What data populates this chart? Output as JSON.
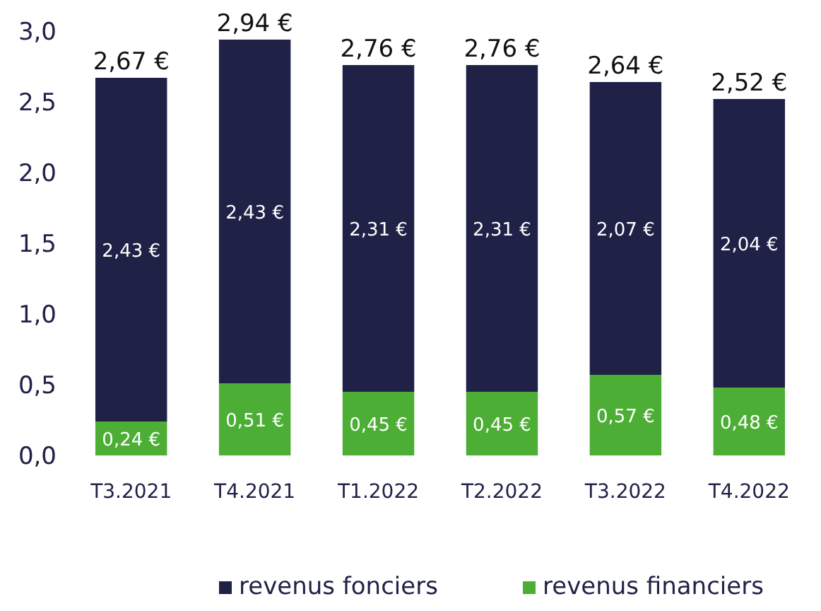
{
  "chart_data": {
    "type": "bar",
    "stacked": true,
    "categories": [
      "T3.2021",
      "T4.2021",
      "T1.2022",
      "T2.2022",
      "T3.2022",
      "T4.2022"
    ],
    "series": [
      {
        "name": "revenus financiers",
        "color": "#4cae35",
        "values": [
          0.24,
          0.51,
          0.45,
          0.45,
          0.57,
          0.48
        ],
        "value_labels": [
          "0,24 €",
          "0,51 €",
          "0,45 €",
          "0,45 €",
          "0,57 €",
          "0,48 €"
        ]
      },
      {
        "name": "revenus fonciers",
        "color": "#1f2147",
        "values": [
          2.43,
          2.43,
          2.31,
          2.31,
          2.07,
          2.04
        ],
        "value_labels": [
          "2,43 €",
          "2,43 €",
          "2,31 €",
          "2,31 €",
          "2,07 €",
          "2,04 €"
        ]
      }
    ],
    "totals": [
      "2,67 €",
      "2,94 €",
      "2,76 €",
      "2,76 €",
      "2,64 €",
      "2,52 €"
    ],
    "ylim": [
      0,
      3
    ],
    "yticks": [
      {
        "value": 0,
        "label": "0,0"
      },
      {
        "value": 0.5,
        "label": "0,5"
      },
      {
        "value": 1,
        "label": "1,0"
      },
      {
        "value": 1.5,
        "label": "1,5"
      },
      {
        "value": 2,
        "label": "2,0"
      },
      {
        "value": 2.5,
        "label": "2,5"
      },
      {
        "value": 3,
        "label": "3,0"
      }
    ],
    "grid": false,
    "legend": "bottom"
  }
}
